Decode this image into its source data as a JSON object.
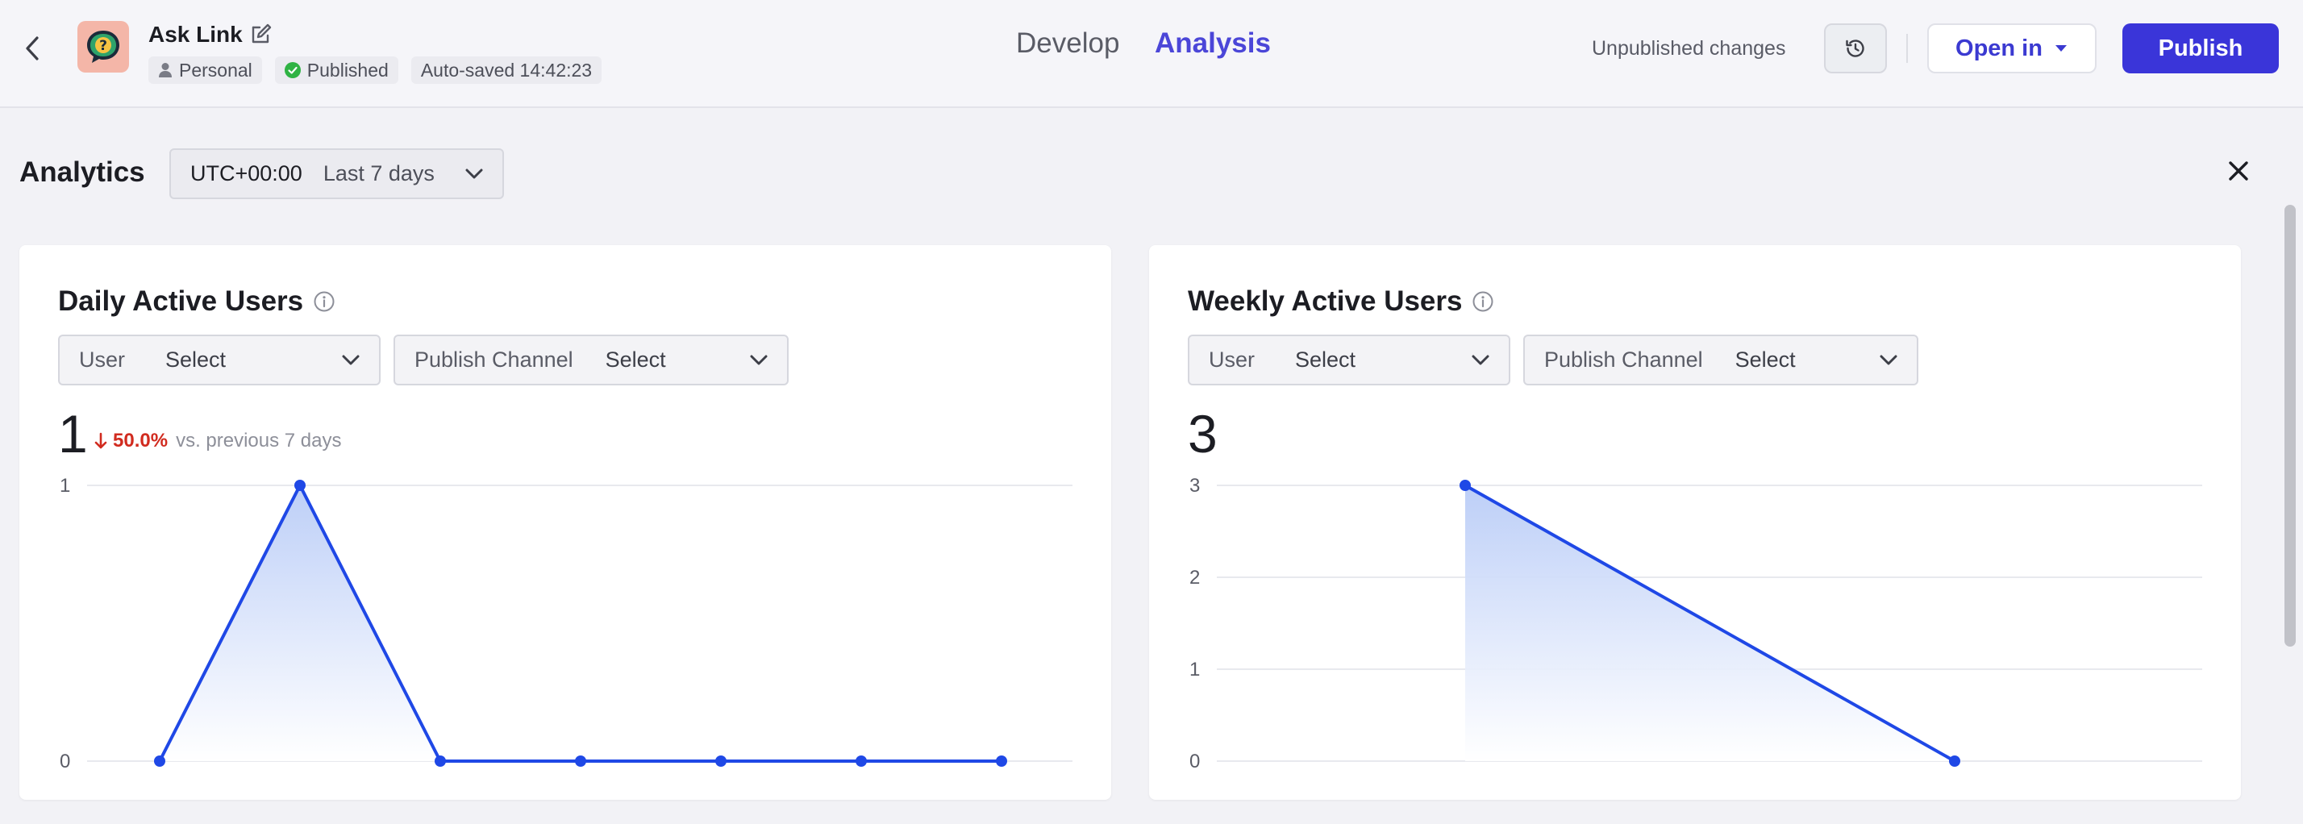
{
  "header": {
    "app_name": "Ask Link",
    "tags": {
      "workspace": "Personal",
      "status": "Published",
      "autosave": "Auto-saved 14:42:23"
    },
    "tabs": {
      "develop": "Develop",
      "analysis": "Analysis"
    },
    "active_tab": "Analysis",
    "unpublished_note": "Unpublished changes",
    "open_in_label": "Open in",
    "publish_label": "Publish",
    "accent_color": "#3a35d9",
    "status_color": "#2fb344"
  },
  "analytics": {
    "title": "Analytics",
    "timezone": "UTC+00:00",
    "period": "Last 7 days"
  },
  "cards": {
    "dau": {
      "title": "Daily Active Users",
      "filters": {
        "user_label": "User",
        "user_value": "Select",
        "channel_label": "Publish Channel",
        "channel_value": "Select"
      },
      "value": "1",
      "delta_pct": "50.0%",
      "delta_direction": "down",
      "delta_text": "vs. previous 7 days"
    },
    "wau": {
      "title": "Weekly Active Users",
      "filters": {
        "user_label": "User",
        "user_value": "Select",
        "channel_label": "Publish Channel",
        "channel_value": "Select"
      },
      "value": "3"
    }
  },
  "chart_data": [
    {
      "type": "area",
      "title": "Daily Active Users",
      "x": [
        1,
        2,
        3,
        4,
        5,
        6,
        7
      ],
      "values": [
        0,
        1,
        0,
        0,
        0,
        0,
        0
      ],
      "y_ticks": [
        "1",
        "0"
      ],
      "ylim": [
        0,
        1
      ],
      "grid": true,
      "line_color": "#1f48e6"
    },
    {
      "type": "area",
      "title": "Weekly Active Users",
      "x": [
        1,
        2
      ],
      "values": [
        3,
        0
      ],
      "y_ticks": [
        "3",
        "2",
        "1",
        "0"
      ],
      "ylim": [
        0,
        3
      ],
      "grid": true,
      "line_color": "#1f48e6"
    }
  ]
}
